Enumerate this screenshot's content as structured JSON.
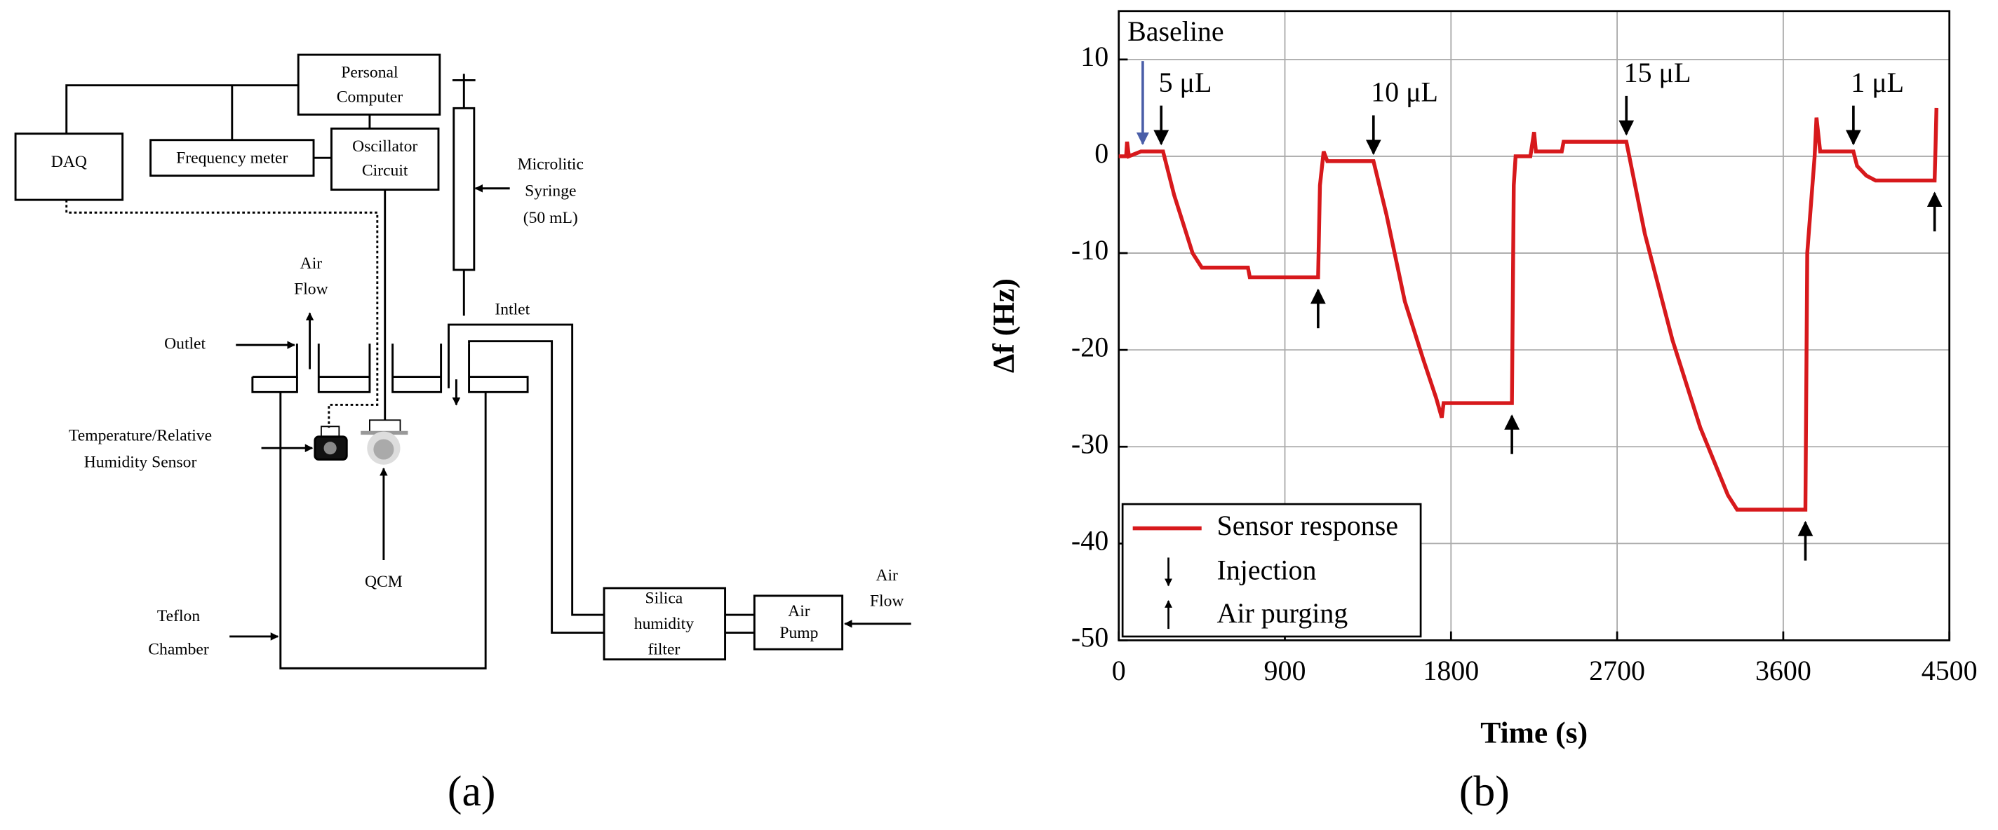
{
  "diagram": {
    "personal_computer": [
      "Personal",
      "Computer"
    ],
    "daq": "DAQ",
    "frequency_meter": "Frequency meter",
    "oscillator": [
      "Oscillator",
      "Circuit"
    ],
    "syringe": [
      "Microlitic",
      "Syringe",
      "(50 mL)"
    ],
    "air_flow_top": [
      "Air",
      "Flow"
    ],
    "outlet": "Outlet",
    "inlet": "Intlet",
    "sensor": [
      "Temperature/Relative",
      "Humidity Sensor"
    ],
    "qcm": "QCM",
    "chamber": [
      "Teflon",
      "Chamber"
    ],
    "filter": [
      "Silica",
      "humidity",
      "filter"
    ],
    "pump": [
      "Air",
      "Pump"
    ],
    "air_flow_right": [
      "Air",
      "Flow"
    ]
  },
  "captions": [
    "(a)",
    "(b)"
  ],
  "chart_data": {
    "type": "line",
    "x_label": "Time (s)",
    "y_label": "Δf (Hz)",
    "x": [
      0,
      40,
      45,
      55,
      120,
      240,
      300,
      350,
      400,
      450,
      700,
      710,
      1080,
      1090,
      1110,
      1130,
      1380,
      1450,
      1550,
      1650,
      1720,
      1750,
      1760,
      1800,
      2130,
      2140,
      2150,
      2230,
      2250,
      2260,
      2400,
      2410,
      2750,
      2850,
      3000,
      3150,
      3300,
      3350,
      3720,
      3730,
      3770,
      3780,
      3800,
      3980,
      4000,
      4050,
      4100,
      4420,
      4425,
      4430
    ],
    "series": [
      {
        "name": "Sensor response",
        "color": "#d7191c",
        "values": [
          0,
          0,
          1.5,
          0,
          0.5,
          0.5,
          -4,
          -7,
          -10,
          -11.5,
          -11.5,
          -12.5,
          -12.5,
          -3,
          0.5,
          -0.5,
          -0.5,
          -6,
          -15,
          -21,
          -25,
          -27,
          -25.5,
          -25.5,
          -25.5,
          -3,
          0,
          0,
          2.5,
          0.5,
          0.5,
          1.5,
          1.5,
          -8,
          -19,
          -28,
          -35,
          -36.5,
          -36.5,
          -10,
          0,
          4,
          0.5,
          0.5,
          -1,
          -2,
          -2.5,
          -2.5,
          1,
          5
        ]
      }
    ],
    "xlim": [
      0,
      4500
    ],
    "ylim": [
      -50,
      15
    ],
    "xticks": [
      0,
      900,
      1800,
      2700,
      3600,
      4500
    ],
    "yticks": [
      -50,
      -40,
      -30,
      -20,
      -10,
      0,
      10
    ],
    "grid": true,
    "legend": "lower left",
    "legend_extra": [
      "Injection",
      "Air purging"
    ],
    "baseline": {
      "text": "Baseline",
      "x": 130,
      "color": "#4a5ea8"
    },
    "annotations": [
      {
        "text": "5 μL",
        "x": 230
      },
      {
        "text": "10 μL",
        "x": 1380
      },
      {
        "text": "15 μL",
        "x": 2750
      },
      {
        "text": "1 μL",
        "x": 3980
      }
    ],
    "purge_x": [
      1080,
      2130,
      3720,
      4420
    ]
  }
}
